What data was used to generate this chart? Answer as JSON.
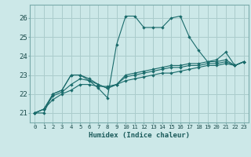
{
  "xlabel": "Humidex (Indice chaleur)",
  "background_color": "#cce8e8",
  "grid_color": "#aacccc",
  "line_color": "#1a6b6b",
  "xlim": [
    -0.5,
    23.5
  ],
  "ylim": [
    20.5,
    26.7
  ],
  "xticks": [
    0,
    1,
    2,
    3,
    4,
    5,
    6,
    7,
    8,
    9,
    10,
    11,
    12,
    13,
    14,
    15,
    16,
    17,
    18,
    19,
    20,
    21,
    22,
    23
  ],
  "yticks": [
    21,
    22,
    23,
    24,
    25,
    26
  ],
  "series": [
    [
      21.0,
      21.0,
      22.0,
      22.2,
      23.0,
      23.0,
      22.7,
      22.3,
      21.8,
      24.6,
      26.1,
      26.1,
      25.5,
      25.5,
      25.5,
      26.0,
      26.1,
      25.0,
      24.3,
      23.7,
      23.8,
      24.2,
      23.5,
      23.7
    ],
    [
      21.0,
      21.2,
      21.7,
      22.0,
      22.2,
      22.5,
      22.5,
      22.4,
      22.4,
      22.5,
      22.7,
      22.8,
      22.9,
      23.0,
      23.1,
      23.1,
      23.2,
      23.3,
      23.4,
      23.5,
      23.5,
      23.6,
      23.5,
      23.7
    ],
    [
      21.0,
      21.2,
      21.9,
      22.1,
      22.5,
      22.8,
      22.7,
      22.5,
      22.3,
      22.5,
      22.9,
      23.0,
      23.1,
      23.2,
      23.3,
      23.4,
      23.4,
      23.5,
      23.5,
      23.6,
      23.6,
      23.7,
      23.5,
      23.7
    ],
    [
      21.0,
      21.2,
      22.0,
      22.2,
      23.0,
      23.0,
      22.8,
      22.5,
      22.3,
      22.5,
      23.0,
      23.1,
      23.2,
      23.3,
      23.4,
      23.5,
      23.5,
      23.6,
      23.6,
      23.7,
      23.7,
      23.8,
      23.5,
      23.7
    ]
  ]
}
